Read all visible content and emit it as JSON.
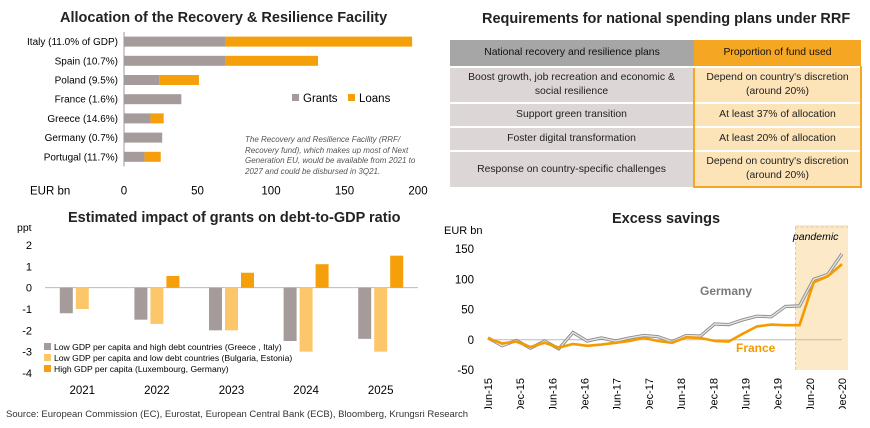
{
  "titles": {
    "rrf": "Allocation of the Recovery & Resilience Facility",
    "req": "Requirements for national spending plans under RRF",
    "grants": "Estimated impact of grants on debt-to-GDP ratio",
    "savings": "Excess savings"
  },
  "rrf_note": "The Recovery and Resilience Facility (RRF/ Recovery fund), which makes up most of Next Generation EU, would be available from  2021 to 2027 and could be disbursed in 3Q21.",
  "requirements": {
    "headers": [
      "National recovery and resilience plans",
      "Proportion of fund used"
    ],
    "rows": [
      [
        "Boost  growth, job recreation and economic & social resilience",
        "Depend on country's discretion (around 20%)"
      ],
      [
        "Support green transition",
        "At least 37% of allocation"
      ],
      [
        "Foster digital transformation",
        "At least 20% of allocation"
      ],
      [
        "Response on country-specific challenges",
        "Depend on country's discretion (around 20%)"
      ]
    ]
  },
  "source": "Source: European Commission (EC), Eurostat, European Central Bank (ECB), Bloomberg, Krungsri Research",
  "chart_data": [
    {
      "type": "bar",
      "orientation": "horizontal",
      "stacked": true,
      "title": "Allocation of the Recovery & Resilience Facility",
      "xlabel": "EUR bn",
      "xlim": [
        0,
        200
      ],
      "xticks": [
        0,
        50,
        100,
        150,
        200
      ],
      "categories": [
        "Italy (11.0% of GDP)",
        "Spain (10.7%)",
        "Poland (9.5%)",
        "France (1.6%)",
        "Greece (14.6%)",
        "Germany (0.7%)",
        "Portugal (11.7%)"
      ],
      "series": [
        {
          "name": "Grants",
          "color": "#a69b9b",
          "values": [
            69,
            69,
            24,
            39,
            18,
            26,
            14
          ]
        },
        {
          "name": "Loans",
          "color": "#f5a00a",
          "values": [
            127,
            63,
            27,
            0,
            9,
            0,
            11
          ]
        }
      ],
      "legend": "right"
    },
    {
      "type": "bar",
      "title": "Estimated impact of grants on debt-to-GDP ratio",
      "ylabel": "ppt",
      "ylim": [
        -4,
        2
      ],
      "yticks": [
        2,
        1,
        0,
        -1,
        -2,
        -3,
        -4
      ],
      "categories": [
        "2021",
        "2022",
        "2023",
        "2024",
        "2025"
      ],
      "series": [
        {
          "name": "Low GDP per capita and high debt countries (Greece , Italy)",
          "color": "#a69b9b",
          "values": [
            -1.2,
            -1.5,
            -2.0,
            -2.5,
            -2.4
          ]
        },
        {
          "name": "Low GDP per capita and low debt countries (Bulgaria, Estonia)",
          "color": "#fbc76a",
          "values": [
            -1.0,
            -1.7,
            -2.0,
            -3.0,
            -3.0
          ]
        },
        {
          "name": "High GDP per capita (Luxembourg, Germany)",
          "color": "#f5a00a",
          "values": [
            0,
            0.55,
            0.7,
            1.1,
            1.5
          ]
        }
      ],
      "legend": "bottom-left"
    },
    {
      "type": "line",
      "title": "Excess savings",
      "ylabel": "EUR bn",
      "ylim": [
        -50,
        150
      ],
      "yticks": [
        150,
        100,
        50,
        0,
        -50
      ],
      "xticklabels": [
        "Jun-15",
        "Dec-15",
        "Jun-16",
        "Dec-16",
        "Jun-17",
        "Dec-17",
        "Jun-18",
        "Dec-18",
        "Jun-19",
        "Dec-19",
        "Jun-20",
        "Dec-20"
      ],
      "annotation": "pandemic",
      "series": [
        {
          "name": "Germany",
          "color": "#a6a6a6",
          "values": [
            3,
            -10,
            -1,
            -14,
            -2,
            -15,
            12,
            -2,
            3,
            -2,
            3,
            7,
            5,
            -3,
            7,
            6,
            26,
            25,
            33,
            39,
            38,
            55,
            56,
            100,
            108,
            142
          ]
        },
        {
          "name": "France",
          "color": "#f59a00",
          "values": [
            2,
            -6,
            -3,
            -12,
            -5,
            -13,
            -7,
            -10,
            -8,
            -5,
            -2,
            3,
            -2,
            -5,
            4,
            3,
            -2,
            -3,
            10,
            22,
            25,
            24,
            24,
            95,
            105,
            125
          ]
        }
      ]
    }
  ]
}
